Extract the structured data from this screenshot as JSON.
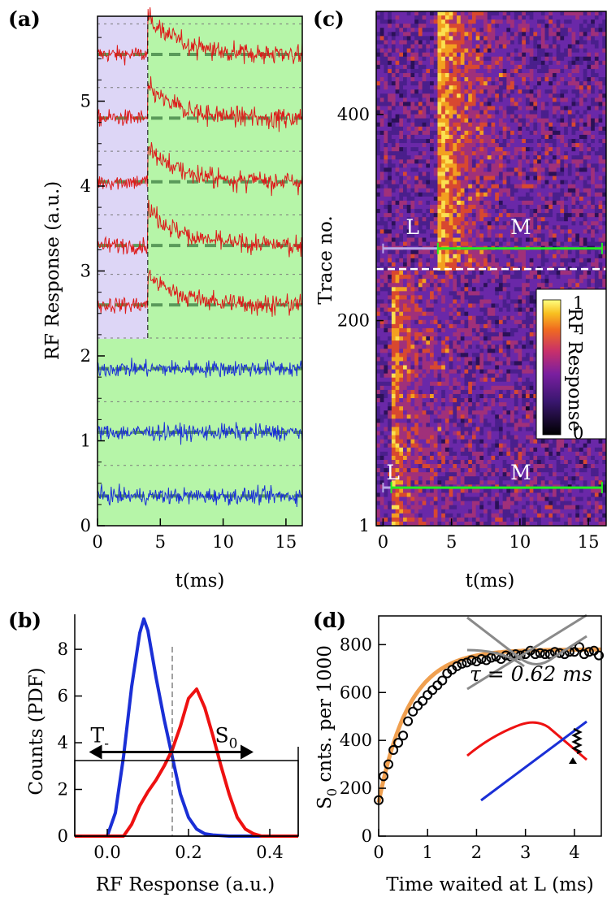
{
  "chart_data": [
    {
      "panel": "(a)",
      "type": "line",
      "xlabel": "t(ms)",
      "ylabel": "RF Response (a.u.)",
      "xlim": [
        0,
        16.3
      ],
      "ylim": [
        0,
        6.0
      ],
      "xticks": [
        "0",
        "5",
        "10",
        "15"
      ],
      "yticks": [
        "0",
        "1",
        "2",
        "3",
        "4",
        "5"
      ],
      "shaded_L_region": {
        "t_start": 0,
        "t_end": 4.0,
        "offset_max": 2.2
      },
      "series": [
        {
          "color": "#dd1a1a",
          "baseline": 5.55,
          "switch_step": 0.45,
          "switch_time": 4.0
        },
        {
          "color": "#dd1a1a",
          "baseline": 4.8,
          "switch_step": 0.35,
          "switch_time": 4.0
        },
        {
          "color": "#dd1a1a",
          "baseline": 4.05,
          "switch_step": 0.4,
          "switch_time": 4.0
        },
        {
          "color": "#dd1a1a",
          "baseline": 3.3,
          "switch_step": 0.45,
          "switch_time": 4.0
        },
        {
          "color": "#dd1a1a",
          "baseline": 2.6,
          "switch_step": 0.35,
          "switch_time": 4.0
        },
        {
          "color": "#1a2fd6",
          "baseline": 1.85,
          "switch_step": 0,
          "switch_time": 0
        },
        {
          "color": "#1a2fd6",
          "baseline": 1.1,
          "switch_step": 0,
          "switch_time": 0
        },
        {
          "color": "#1a2fd6",
          "baseline": 0.35,
          "switch_step": 0,
          "switch_time": 0
        }
      ]
    },
    {
      "panel": "(b)",
      "type": "line",
      "xlabel": "RF Response (a.u.)",
      "ylabel": "Counts (PDF)",
      "xlim": [
        -0.08,
        0.47
      ],
      "ylim": [
        0,
        9.5
      ],
      "xticks": [
        "0.0",
        "0.2",
        "0.4"
      ],
      "yticks": [
        "0",
        "2",
        "4",
        "6",
        "8"
      ],
      "threshold": 0.16,
      "annotations": [
        "T",
        "S"
      ],
      "annotation_subscripts": [
        "-",
        "0"
      ],
      "series": [
        {
          "color": "#1a2fd6",
          "x": [
            0.0,
            0.02,
            0.04,
            0.06,
            0.08,
            0.09,
            0.1,
            0.12,
            0.14,
            0.16,
            0.18,
            0.2,
            0.22,
            0.24,
            0.26,
            0.3
          ],
          "y": [
            0.0,
            1.0,
            3.4,
            6.4,
            8.7,
            9.3,
            8.8,
            6.8,
            5.0,
            3.4,
            1.8,
            0.8,
            0.3,
            0.1,
            0.05,
            0.0
          ]
        },
        {
          "color": "#ee1111",
          "x": [
            0.04,
            0.06,
            0.08,
            0.1,
            0.12,
            0.14,
            0.16,
            0.18,
            0.2,
            0.22,
            0.24,
            0.26,
            0.28,
            0.3,
            0.32,
            0.34,
            0.36,
            0.38
          ],
          "y": [
            0.0,
            0.5,
            1.3,
            1.9,
            2.4,
            3.0,
            3.7,
            4.7,
            5.9,
            6.3,
            5.5,
            4.3,
            3.0,
            1.8,
            0.8,
            0.3,
            0.1,
            0.0
          ]
        }
      ]
    },
    {
      "panel": "(c)",
      "type": "heatmap",
      "xlabel": "t(ms)",
      "ylabel": "Trace no.",
      "xlim": [
        -0.5,
        16.3
      ],
      "ylim": [
        1,
        500
      ],
      "xticks": [
        "0",
        "5",
        "10",
        "15"
      ],
      "yticks": [
        "1",
        "200",
        "400"
      ],
      "colorbar_label": "RF Response",
      "colorbar_ticks": [
        "0",
        "1"
      ],
      "colormap": [
        "#000000",
        "#3a1770",
        "#7a1fa0",
        "#c8306a",
        "#f06a20",
        "#f8c020",
        "#ffff80"
      ],
      "split_trace": 250,
      "upper_block": {
        "L_start": 0,
        "L_end": 4.0,
        "M_start": 4.0,
        "M_end": 16.0,
        "L_label": "L",
        "M_label": "M"
      },
      "lower_block": {
        "L_start": 0,
        "L_end": 0.6,
        "M_start": 0.6,
        "M_end": 16.0,
        "L_label": "L",
        "M_label": "M"
      }
    },
    {
      "panel": "(d)",
      "type": "scatter",
      "xlabel": "Time waited at L (ms)",
      "ylabel": "S",
      "ylabel_subscript": "0",
      "ylabel_rest": " cnts. per 1000",
      "xlim": [
        0,
        4.55
      ],
      "ylim": [
        0,
        920
      ],
      "xticks": [
        "0",
        "1",
        "2",
        "3",
        "4"
      ],
      "yticks": [
        "0",
        "200",
        "400",
        "600",
        "800"
      ],
      "annotation": "τ = 0.62 ms",
      "tau": 0.62,
      "fit": {
        "A": 780,
        "y0": 140,
        "tau": 0.62,
        "color": "#f0a050"
      },
      "points": {
        "x": [
          0.0,
          0.1,
          0.2,
          0.3,
          0.4,
          0.5,
          0.6,
          0.7,
          0.8,
          0.9,
          1.0,
          1.1,
          1.2,
          1.3,
          1.4,
          1.5,
          1.6,
          1.7,
          1.8,
          1.9,
          2.0,
          2.1,
          2.2,
          2.3,
          2.4,
          2.5,
          2.6,
          2.7,
          2.8,
          2.9,
          3.0,
          3.1,
          3.2,
          3.3,
          3.4,
          3.5,
          3.6,
          3.7,
          3.8,
          3.9,
          4.0,
          4.1,
          4.2,
          4.3,
          4.4,
          4.5
        ],
        "y": [
          150,
          250,
          300,
          360,
          390,
          420,
          480,
          520,
          545,
          565,
          590,
          610,
          630,
          650,
          680,
          695,
          710,
          720,
          725,
          735,
          730,
          740,
          735,
          745,
          750,
          740,
          755,
          750,
          760,
          755,
          760,
          775,
          760,
          765,
          760,
          760,
          770,
          765,
          760,
          770,
          770,
          790,
          760,
          770,
          775,
          755
        ]
      }
    }
  ]
}
